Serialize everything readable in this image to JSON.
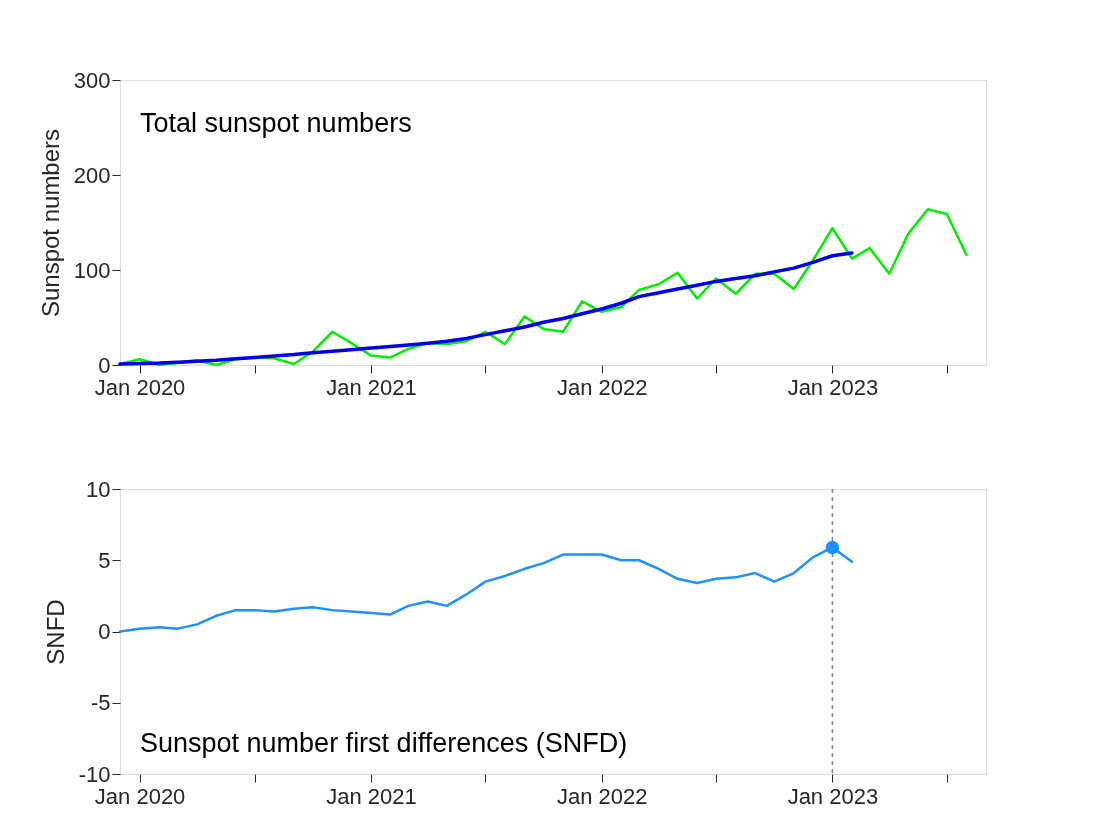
{
  "chart_data": [
    {
      "type": "line",
      "ylabel": "Sunspot numbers",
      "annotations": [
        "Total sunspot numbers"
      ],
      "x": [
        "2019-12",
        "2020-01",
        "2020-02",
        "2020-03",
        "2020-04",
        "2020-05",
        "2020-06",
        "2020-07",
        "2020-08",
        "2020-09",
        "2020-10",
        "2020-11",
        "2020-12",
        "2021-01",
        "2021-02",
        "2021-03",
        "2021-04",
        "2021-05",
        "2021-06",
        "2021-07",
        "2021-08",
        "2021-09",
        "2021-10",
        "2021-11",
        "2021-12",
        "2022-01",
        "2022-02",
        "2022-03",
        "2022-04",
        "2022-05",
        "2022-06",
        "2022-07",
        "2022-08",
        "2022-09",
        "2022-10",
        "2022-11",
        "2022-12",
        "2023-01",
        "2023-02",
        "2023-03",
        "2023-04",
        "2023-05",
        "2023-06",
        "2023-07",
        "2023-08"
      ],
      "series": [
        {
          "color": "#00ee00",
          "values": [
            1,
            6,
            0,
            2,
            5,
            0,
            6,
            8,
            7,
            1,
            14,
            35,
            23,
            10,
            8,
            17,
            23,
            22,
            25,
            35,
            22,
            51,
            38,
            35,
            67,
            56,
            61,
            79,
            85,
            97,
            70,
            91,
            75,
            96,
            96,
            80,
            110,
            144,
            112,
            123,
            96,
            138,
            164,
            159,
            116
          ]
        },
        {
          "color": "#0000ee",
          "x": [
            "2019-12",
            "2020-01",
            "2020-02",
            "2020-03",
            "2020-04",
            "2020-05",
            "2020-06",
            "2020-07",
            "2020-08",
            "2020-09",
            "2020-10",
            "2020-11",
            "2020-12",
            "2021-01",
            "2021-02",
            "2021-03",
            "2021-04",
            "2021-05",
            "2021-06",
            "2021-07",
            "2021-08",
            "2021-09",
            "2021-10",
            "2021-11",
            "2021-12",
            "2022-01",
            "2022-02",
            "2022-03",
            "2022-04",
            "2022-05",
            "2022-06",
            "2022-07",
            "2022-08",
            "2022-09",
            "2022-10",
            "2022-11",
            "2022-12",
            "2023-01",
            "2023-02"
          ],
          "values": [
            1,
            1.5,
            2,
            3,
            4,
            5,
            6.5,
            8,
            9.5,
            11,
            13,
            14.5,
            16,
            18,
            19.5,
            21,
            23,
            25,
            28,
            32,
            36,
            40,
            45,
            49,
            54,
            59,
            65,
            72,
            76,
            80,
            84,
            88,
            91,
            94,
            98,
            102,
            108,
            115,
            118
          ]
        }
      ],
      "xlim": [
        "2019-12",
        "2023-09"
      ],
      "xticks": [
        {
          "value": "2020-01",
          "label": "Jan 2020"
        },
        {
          "value": "2020-07",
          "label": null
        },
        {
          "value": "2021-01",
          "label": "Jan 2021"
        },
        {
          "value": "2021-07",
          "label": null
        },
        {
          "value": "2022-01",
          "label": "Jan 2022"
        },
        {
          "value": "2022-07",
          "label": null
        },
        {
          "value": "2023-01",
          "label": "Jan 2023"
        },
        {
          "value": "2023-07",
          "label": null
        }
      ],
      "ylim": [
        0,
        300
      ],
      "yticks": [
        0,
        100,
        200,
        300
      ]
    },
    {
      "type": "line",
      "ylabel": "SNFD",
      "annotations": [
        "Sunspot number first differences (SNFD)"
      ],
      "x": [
        "2019-12",
        "2020-01",
        "2020-02",
        "2020-03",
        "2020-04",
        "2020-05",
        "2020-06",
        "2020-07",
        "2020-08",
        "2020-09",
        "2020-10",
        "2020-11",
        "2020-12",
        "2021-01",
        "2021-02",
        "2021-03",
        "2021-04",
        "2021-05",
        "2021-06",
        "2021-07",
        "2021-08",
        "2021-09",
        "2021-10",
        "2021-11",
        "2021-12",
        "2022-01",
        "2022-02",
        "2022-03",
        "2022-04",
        "2022-05",
        "2022-06",
        "2022-07",
        "2022-08",
        "2022-09",
        "2022-10",
        "2022-11",
        "2022-12",
        "2023-01",
        "2023-02"
      ],
      "series": [
        {
          "color": "#1e90ff",
          "values": [
            0,
            0.2,
            0.3,
            0.2,
            0.5,
            1.1,
            1.5,
            1.5,
            1.4,
            1.6,
            1.7,
            1.5,
            1.4,
            1.3,
            1.2,
            1.8,
            2.1,
            1.8,
            2.6,
            3.5,
            3.9,
            4.4,
            4.8,
            5.4,
            5.4,
            5.4,
            5.0,
            5.0,
            4.4,
            3.7,
            3.4,
            3.7,
            3.8,
            4.1,
            3.5,
            4.1,
            5.2,
            5.9,
            4.9
          ]
        },
        {
          "type": "scatter",
          "marker": "circle",
          "color": "#1e90ff",
          "x": [
            "2023-01"
          ],
          "values": [
            5.9
          ]
        }
      ],
      "ref_lines": [
        {
          "axis": "x",
          "value": "2023-01",
          "color": "#808080",
          "line_style": "dashed"
        }
      ],
      "xlim": [
        "2019-12",
        "2023-09"
      ],
      "xticks": [
        {
          "value": "2020-01",
          "label": "Jan 2020"
        },
        {
          "value": "2020-07",
          "label": null
        },
        {
          "value": "2021-01",
          "label": "Jan 2021"
        },
        {
          "value": "2021-07",
          "label": null
        },
        {
          "value": "2022-01",
          "label": "Jan 2022"
        },
        {
          "value": "2022-07",
          "label": null
        },
        {
          "value": "2023-01",
          "label": "Jan 2023"
        },
        {
          "value": "2023-07",
          "label": null
        }
      ],
      "ylim": [
        -10,
        10
      ],
      "yticks": [
        -10,
        -5,
        0,
        5,
        10
      ]
    }
  ]
}
